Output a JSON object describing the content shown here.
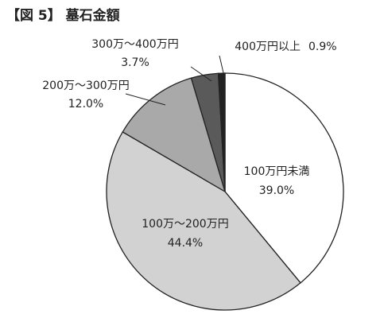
{
  "chart_data": {
    "type": "pie",
    "title": "【図 5】 墓石金額",
    "categories": [
      "100万円未満",
      "100万～200万円",
      "200万～300万円",
      "300万～400万円",
      "400万円以上"
    ],
    "values": [
      39.0,
      44.4,
      12.0,
      3.7,
      0.9
    ],
    "value_labels": [
      "39.0%",
      "44.4%",
      "12.0%",
      "3.7%",
      "0.9%"
    ],
    "colors": [
      "#ffffff",
      "#d2d2d2",
      "#a9a9a9",
      "#5a5a5a",
      "#222222"
    ]
  }
}
